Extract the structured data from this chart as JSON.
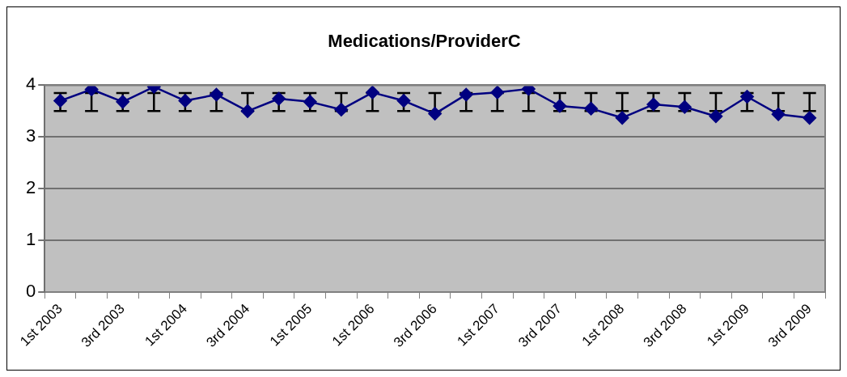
{
  "chart_data": {
    "type": "line",
    "title": "Medications/ProviderC",
    "categories": [
      "1st 2003",
      null,
      "3rd 2003",
      null,
      "1st 2004",
      null,
      "3rd 2004",
      null,
      "1st 2005",
      null,
      "1st 2006",
      null,
      "3rd 2006",
      null,
      "1st 2007",
      null,
      "3rd 2007",
      null,
      "1st 2008",
      null,
      "3rd 2008",
      null,
      "1st 2009",
      null,
      "3rd 2009"
    ],
    "series": [
      {
        "color": "#000080",
        "values": [
          3.7,
          3.92,
          3.68,
          3.97,
          3.7,
          3.82,
          3.5,
          3.74,
          3.68,
          3.53,
          3.86,
          3.7,
          3.45,
          3.82,
          3.86,
          3.93,
          3.6,
          3.55,
          3.37,
          3.63,
          3.58,
          3.4,
          3.78,
          3.44,
          3.37
        ],
        "errors": [
          [
            3.5,
            3.85
          ],
          [
            3.5,
            3.85
          ],
          [
            3.5,
            3.85
          ],
          [
            3.5,
            3.85
          ],
          [
            3.5,
            3.85
          ],
          [
            3.5,
            3.85
          ],
          [
            3.5,
            3.85
          ],
          [
            3.5,
            3.85
          ],
          [
            3.5,
            3.85
          ],
          [
            3.5,
            3.85
          ],
          [
            3.5,
            3.85
          ],
          [
            3.5,
            3.85
          ],
          [
            3.5,
            3.85
          ],
          [
            3.5,
            3.85
          ],
          [
            3.5,
            3.85
          ],
          [
            3.5,
            3.85
          ],
          [
            3.5,
            3.85
          ],
          [
            3.5,
            3.85
          ],
          [
            3.5,
            3.85
          ],
          [
            3.5,
            3.85
          ],
          [
            3.5,
            3.85
          ],
          [
            3.5,
            3.85
          ],
          [
            3.5,
            3.85
          ],
          [
            3.5,
            3.85
          ],
          [
            3.5,
            3.85
          ]
        ]
      }
    ],
    "ylim": [
      0,
      4
    ],
    "yticks": [
      0,
      1,
      2,
      3,
      4
    ],
    "grid": "y",
    "legend": false,
    "marker": "diamond",
    "line_style": "solid"
  }
}
